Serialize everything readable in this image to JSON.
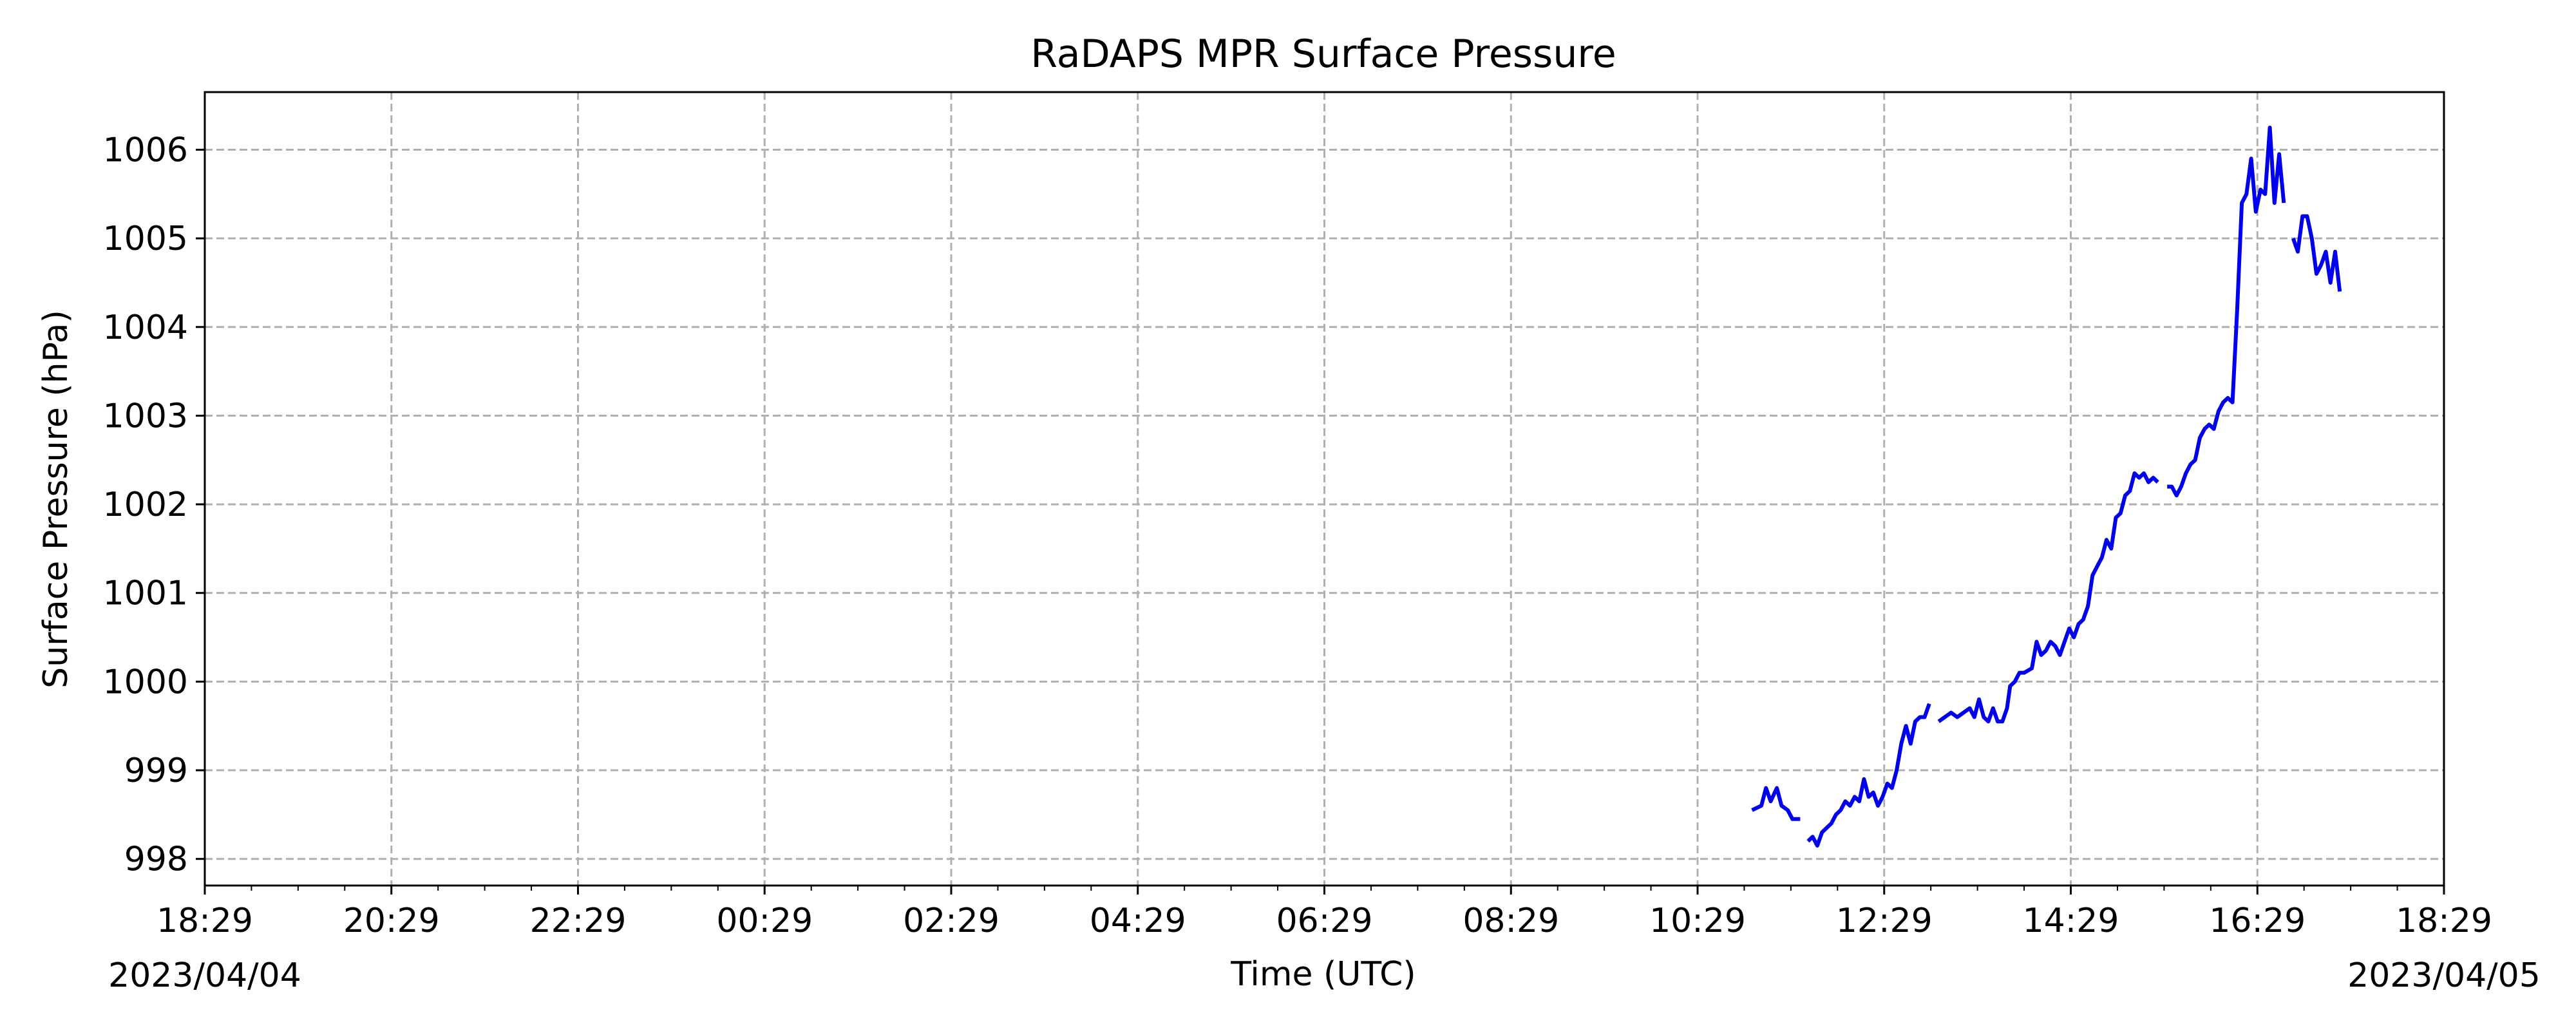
{
  "chart_data": {
    "type": "line",
    "title": "RaDAPS MPR Surface Pressure",
    "xlabel": "Time (UTC)",
    "ylabel": "Surface Pressure (hPa)",
    "x_start_date": "2023/04/04",
    "x_end_date": "2023/04/05",
    "x_ticks": [
      "18:29",
      "20:29",
      "22:29",
      "00:29",
      "02:29",
      "04:29",
      "06:29",
      "08:29",
      "10:29",
      "12:29",
      "14:29",
      "16:29",
      "18:29"
    ],
    "y_ticks": [
      998,
      999,
      1000,
      1001,
      1002,
      1003,
      1004,
      1005,
      1006
    ],
    "ylim": [
      997.7,
      1006.65
    ],
    "grid": true,
    "colors": {
      "line": "#0000ee",
      "grid": "#b0b0b0"
    },
    "series": [
      {
        "segments": [
          [
            [
              "11:04",
              998.55
            ],
            [
              "11:10",
              998.6
            ],
            [
              "11:13",
              998.8
            ],
            [
              "11:16",
              998.65
            ],
            [
              "11:20",
              998.8
            ],
            [
              "11:23",
              998.6
            ],
            [
              "11:27",
              998.55
            ],
            [
              "11:30",
              998.45
            ],
            [
              "11:35",
              998.45
            ]
          ],
          [
            [
              "11:40",
              998.2
            ],
            [
              "11:43",
              998.25
            ],
            [
              "11:46",
              998.15
            ],
            [
              "11:49",
              998.3
            ],
            [
              "11:52",
              998.35
            ],
            [
              "11:55",
              998.4
            ],
            [
              "11:58",
              998.5
            ],
            [
              "12:01",
              998.55
            ],
            [
              "12:04",
              998.65
            ],
            [
              "12:07",
              998.6
            ],
            [
              "12:10",
              998.7
            ],
            [
              "12:13",
              998.65
            ],
            [
              "12:16",
              998.9
            ],
            [
              "12:19",
              998.7
            ],
            [
              "12:22",
              998.75
            ],
            [
              "12:25",
              998.6
            ],
            [
              "12:28",
              998.7
            ],
            [
              "12:31",
              998.85
            ],
            [
              "12:34",
              998.8
            ],
            [
              "12:37",
              999.0
            ],
            [
              "12:40",
              999.3
            ],
            [
              "12:43",
              999.5
            ],
            [
              "12:46",
              999.3
            ],
            [
              "12:49",
              999.55
            ],
            [
              "12:52",
              999.6
            ],
            [
              "12:55",
              999.6
            ],
            [
              "12:58",
              999.75
            ]
          ],
          [
            [
              "13:04",
              999.55
            ],
            [
              "13:08",
              999.6
            ],
            [
              "13:12",
              999.65
            ],
            [
              "13:16",
              999.6
            ],
            [
              "13:20",
              999.65
            ],
            [
              "13:24",
              999.7
            ],
            [
              "13:27",
              999.6
            ],
            [
              "13:30",
              999.8
            ],
            [
              "13:33",
              999.6
            ],
            [
              "13:36",
              999.55
            ],
            [
              "13:39",
              999.7
            ],
            [
              "13:42",
              999.55
            ],
            [
              "13:45",
              999.55
            ],
            [
              "13:48",
              999.7
            ],
            [
              "13:50",
              999.95
            ],
            [
              "13:53",
              1000.0
            ],
            [
              "13:56",
              1000.1
            ],
            [
              "13:59",
              1000.1
            ],
            [
              "14:04",
              1000.15
            ],
            [
              "14:07",
              1000.45
            ],
            [
              "14:10",
              1000.3
            ],
            [
              "14:13",
              1000.35
            ],
            [
              "14:16",
              1000.45
            ],
            [
              "14:19",
              1000.4
            ],
            [
              "14:22",
              1000.3
            ],
            [
              "14:25",
              1000.45
            ],
            [
              "14:28",
              1000.6
            ],
            [
              "14:31",
              1000.5
            ],
            [
              "14:34",
              1000.65
            ],
            [
              "14:37",
              1000.7
            ],
            [
              "14:40",
              1000.85
            ],
            [
              "14:43",
              1001.2
            ],
            [
              "14:46",
              1001.3
            ],
            [
              "14:49",
              1001.4
            ],
            [
              "14:52",
              1001.6
            ],
            [
              "14:55",
              1001.5
            ],
            [
              "14:58",
              1001.85
            ],
            [
              "15:01",
              1001.9
            ],
            [
              "15:04",
              1002.1
            ],
            [
              "15:07",
              1002.15
            ],
            [
              "15:10",
              1002.35
            ],
            [
              "15:13",
              1002.3
            ],
            [
              "15:16",
              1002.35
            ],
            [
              "15:19",
              1002.25
            ],
            [
              "15:22",
              1002.3
            ],
            [
              "15:25",
              1002.25
            ]
          ],
          [
            [
              "15:31",
              1002.2
            ],
            [
              "15:34",
              1002.2
            ],
            [
              "15:37",
              1002.1
            ],
            [
              "15:40",
              1002.2
            ],
            [
              "15:43",
              1002.35
            ],
            [
              "15:46",
              1002.45
            ],
            [
              "15:49",
              1002.5
            ],
            [
              "15:52",
              1002.75
            ],
            [
              "15:55",
              1002.85
            ],
            [
              "15:58",
              1002.9
            ],
            [
              "16:01",
              1002.85
            ],
            [
              "16:04",
              1003.05
            ],
            [
              "16:07",
              1003.15
            ],
            [
              "16:10",
              1003.2
            ],
            [
              "16:13",
              1003.15
            ],
            [
              "16:16",
              1004.2
            ],
            [
              "16:19",
              1005.4
            ],
            [
              "16:22",
              1005.5
            ],
            [
              "16:25",
              1005.9
            ],
            [
              "16:28",
              1005.3
            ],
            [
              "16:31",
              1005.55
            ],
            [
              "16:34",
              1005.5
            ],
            [
              "16:37",
              1006.25
            ],
            [
              "16:40",
              1005.4
            ],
            [
              "16:43",
              1005.95
            ],
            [
              "16:46",
              1005.4
            ]
          ],
          [
            [
              "16:52",
              1005.0
            ],
            [
              "16:55",
              1004.85
            ],
            [
              "16:58",
              1005.25
            ],
            [
              "17:01",
              1005.25
            ],
            [
              "17:04",
              1005.0
            ],
            [
              "17:07",
              1004.6
            ],
            [
              "17:10",
              1004.7
            ],
            [
              "17:13",
              1004.85
            ],
            [
              "17:16",
              1004.5
            ],
            [
              "17:19",
              1004.85
            ],
            [
              "17:22",
              1004.4
            ]
          ]
        ]
      }
    ]
  }
}
